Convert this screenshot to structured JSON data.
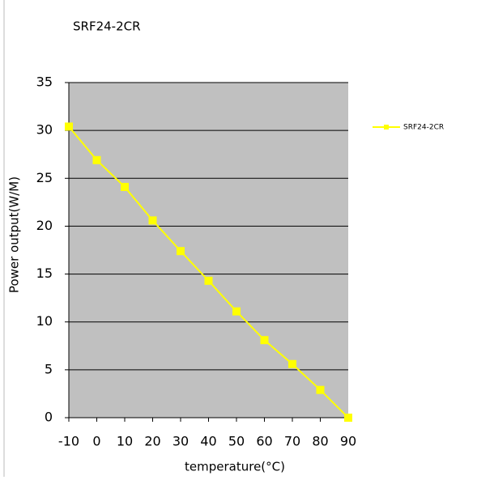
{
  "chart_data": {
    "type": "line",
    "title": "SRF24-2CR",
    "x_label": "temperature(°C)",
    "y_label": "Power output(W/M)",
    "x": [
      -10,
      0,
      10,
      20,
      30,
      40,
      50,
      60,
      70,
      80,
      90
    ],
    "series": [
      {
        "name": "SRF24-2CR",
        "color": "#ffff00",
        "values": [
          30.4,
          26.9,
          24.1,
          20.6,
          17.4,
          14.3,
          11.1,
          8.1,
          5.6,
          2.9,
          0
        ]
      }
    ],
    "xlim": [
      -10,
      90
    ],
    "xticks": [
      -10,
      0,
      10,
      20,
      30,
      40,
      50,
      60,
      70,
      80,
      90
    ],
    "ylim": [
      0,
      35
    ],
    "yticks": [
      0,
      5,
      10,
      15,
      20,
      25,
      30,
      35
    ],
    "grid": true,
    "legend": "right"
  }
}
